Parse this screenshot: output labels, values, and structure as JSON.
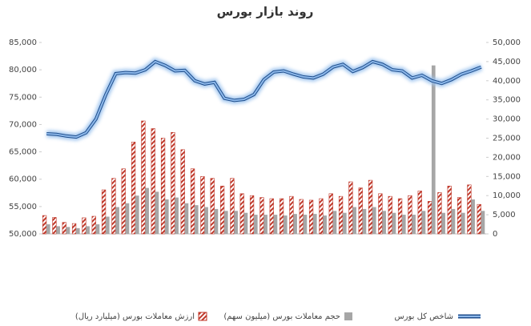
{
  "chart_data": {
    "type": "combo",
    "title": "روند بازار بورس",
    "categories": [
      null,
      null,
      null,
      null,
      null,
      null,
      null,
      null,
      null,
      null,
      null,
      null,
      null,
      null,
      null,
      null,
      null,
      null,
      null,
      null,
      null,
      null,
      null,
      null,
      null,
      null,
      null,
      null,
      null,
      null,
      null,
      null,
      null,
      null,
      null,
      null,
      null,
      null,
      null,
      null,
      null,
      null,
      null,
      null,
      null
    ],
    "ylim": [
      50000,
      85000
    ],
    "yticks": [
      {
        "value": 50000,
        "label": "50,000"
      },
      {
        "value": 55000,
        "label": "55,000"
      },
      {
        "value": 60000,
        "label": "60,000"
      },
      {
        "value": 65000,
        "label": "65,000"
      },
      {
        "value": 70000,
        "label": "70,000"
      },
      {
        "value": 75000,
        "label": "75,000"
      },
      {
        "value": 80000,
        "label": "80,000"
      },
      {
        "value": 85000,
        "label": "85,000"
      }
    ],
    "y2lim": [
      0,
      50000
    ],
    "y2ticks": [
      0,
      {
        "value": 5000,
        "label": "5,000"
      },
      {
        "value": 10000,
        "label": "10,000"
      },
      {
        "value": 15000,
        "label": "15,000"
      },
      {
        "value": 20000,
        "label": "20,000"
      },
      {
        "value": 25000,
        "label": "25,000"
      },
      {
        "value": 30000,
        "label": "30,000"
      },
      {
        "value": 35000,
        "label": "35,000"
      },
      {
        "value": 40000,
        "label": "40,000"
      },
      {
        "value": 45000,
        "label": "45,000"
      },
      {
        "value": 50000,
        "label": "50,000"
      }
    ],
    "series": [
      {
        "name": "ارزش معاملات بورس (میلیارد ریال)",
        "color": "#c0392b",
        "kind": "bar",
        "axis": "y2",
        "values": [
          4800,
          4300,
          3000,
          2700,
          4200,
          4600,
          11500,
          14500,
          17000,
          24000,
          29500,
          27500,
          25000,
          26500,
          22000,
          17000,
          15000,
          14500,
          12500,
          14500,
          10500,
          10000,
          9500,
          9200,
          9200,
          9800,
          9000,
          8800,
          9200,
          10500,
          9800,
          13600,
          12000,
          14000,
          10500,
          9800,
          9200,
          10000,
          11200,
          8500,
          10800,
          12500,
          9500,
          12800,
          7700
        ],
        "value_pattern": "hatched"
      },
      {
        "name": "حجم معاملات بورس (میلیون سهم)",
        "color": "#a6a6a6",
        "kind": "bar",
        "axis": "y2",
        "values": [
          2500,
          2000,
          1800,
          1500,
          2000,
          2500,
          4500,
          7000,
          8000,
          10000,
          12000,
          11000,
          9000,
          9500,
          8000,
          7500,
          7000,
          6500,
          6000,
          6000,
          5500,
          5000,
          5000,
          5000,
          4800,
          5200,
          5000,
          5200,
          4800,
          6000,
          5500,
          7000,
          6500,
          7000,
          6000,
          5500,
          5000,
          5000,
          6000,
          44000,
          5500,
          6500,
          5500,
          9000,
          6000
        ]
      },
      {
        "name": "شاخص کل بورس",
        "color": "#4a7ebb",
        "kind": "line",
        "values": [
          68300,
          68200,
          67900,
          67700,
          68500,
          71000,
          75500,
          79300,
          79500,
          79400,
          80000,
          81500,
          80800,
          79800,
          79900,
          78000,
          77400,
          77700,
          74800,
          74400,
          74600,
          75500,
          78200,
          79600,
          79800,
          79200,
          78700,
          78500,
          79200,
          80500,
          81000,
          79700,
          80400,
          81500,
          81000,
          80000,
          79800,
          78500,
          79000,
          78000,
          77500,
          78200,
          79200,
          79800,
          80500
        ]
      }
    ],
    "grid": false,
    "legend": "bottom"
  }
}
